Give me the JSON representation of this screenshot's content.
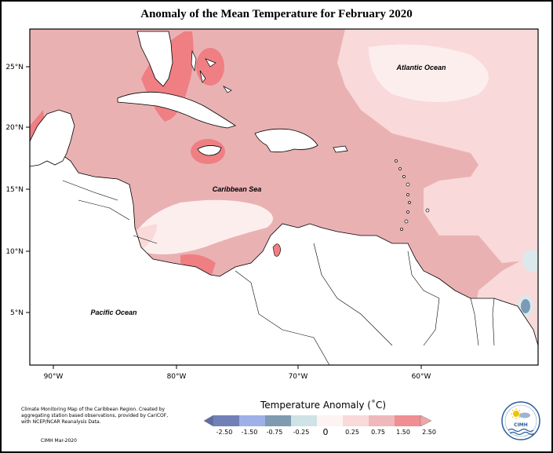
{
  "title": "Anomaly of the Mean Temperature for February 2020",
  "map": {
    "longitude_labels": [
      "90°W",
      "80°W",
      "70°W",
      "60°W"
    ],
    "latitude_labels": [
      "25°N",
      "20°N",
      "15°N",
      "10°N",
      "5°N"
    ],
    "labels": {
      "atlantic": "Atlantic Ocean",
      "caribbean": "Caribbean Sea",
      "pacific": "Pacific Ocean"
    },
    "colors": {
      "anomaly_0_25_0_75": "#f9d9da",
      "anomaly_0_75_1_50": "#eab1b3",
      "anomaly_1_50_2_50": "#ef7f83",
      "anomaly_0_0_25": "#fdeeee",
      "anomaly_neg_0_25_0": "#dce9ec",
      "anomaly_neg_0_75_neg_0_25": "#7b9ab5",
      "land": "#ffffff"
    }
  },
  "legend": {
    "title": "Temperature Anomaly (˚C)",
    "ticks": [
      "-2.50",
      "-1.50",
      "-0.75",
      "-0.25",
      "0",
      "0.25",
      "0.75",
      "1.50",
      "2.50"
    ],
    "colors": [
      "#7280b8",
      "#9fb0e8",
      "#7f9bb2",
      "#cfe2e6",
      "#fdf3f3",
      "#f9d9da",
      "#efb9bb",
      "#ef8f93"
    ]
  },
  "credit": {
    "text": "Climate Monitoring Map of the Caribbean Region. Created by aggregating station based observations, provided by CariCOF, with NCEP/NCAR Reanalysis Data.",
    "date": "CIMH Mar-2020"
  },
  "logo": {
    "text": "CIMH"
  }
}
